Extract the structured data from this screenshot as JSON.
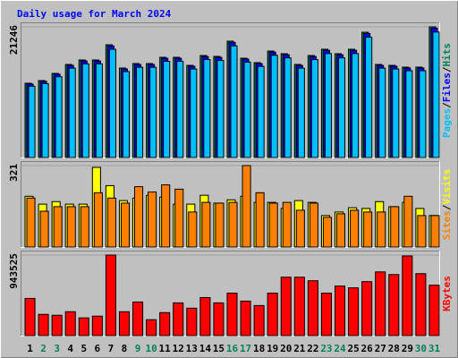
{
  "chart_data": [
    {
      "type": "bar",
      "title": "Daily usage for March 2024",
      "ylim": [
        0,
        21246
      ],
      "yticks": [
        21246
      ],
      "legend_separator": "/",
      "series": [
        {
          "name": "Hits",
          "color": "#00805c",
          "values": [
            12077,
            12513,
            13677,
            15132,
            15860,
            15860,
            18333,
            14550,
            15278,
            15278,
            16296,
            16296,
            14987,
            16587,
            16442,
            18915,
            16151,
            15423,
            17315,
            16878,
            15132,
            16587,
            17606,
            16878,
            17606,
            20370,
            15132,
            14987,
            14696,
            14696,
            21246
          ]
        },
        {
          "name": "Files",
          "color": "#0000ff",
          "values": [
            11950,
            12390,
            13540,
            14980,
            15700,
            15700,
            18150,
            14400,
            15120,
            15120,
            16130,
            16130,
            14840,
            16420,
            16280,
            18720,
            15990,
            15270,
            17140,
            16710,
            14980,
            16420,
            17430,
            16710,
            17430,
            20160,
            14980,
            14840,
            14550,
            14550,
            21030
          ]
        },
        {
          "name": "Pages",
          "color": "#00c0ff",
          "values": [
            11590,
            12010,
            13130,
            14530,
            15230,
            15230,
            17600,
            13970,
            14670,
            14670,
            15640,
            15640,
            14390,
            15920,
            15780,
            18160,
            15510,
            14810,
            16620,
            16200,
            14530,
            15920,
            16900,
            16200,
            16900,
            19560,
            14530,
            14390,
            14110,
            14110,
            20400
          ]
        }
      ]
    },
    {
      "type": "bar",
      "ylim": [
        0,
        321
      ],
      "yticks": [
        321
      ],
      "legend_separator": "/",
      "series": [
        {
          "name": "Visits",
          "color": "#ffff00",
          "values": [
            200,
            169,
            179,
            169,
            169,
            314,
            242,
            183,
            193,
            204,
            197,
            169,
            169,
            204,
            173,
            186,
            200,
            176,
            176,
            152,
            183,
            176,
            124,
            138,
            155,
            152,
            179,
            159,
            176,
            152,
            124
          ]
        },
        {
          "name": "Sites",
          "color": "#ff8000",
          "values": [
            193,
            141,
            159,
            159,
            159,
            214,
            193,
            173,
            238,
            217,
            245,
            228,
            138,
            176,
            173,
            176,
            321,
            214,
            173,
            176,
            145,
            173,
            117,
            131,
            145,
            138,
            138,
            159,
            200,
            124,
            124
          ]
        }
      ]
    },
    {
      "type": "bar",
      "ylim": [
        0,
        943525
      ],
      "yticks": [
        943525
      ],
      "categories": [
        "1",
        "2",
        "3",
        "4",
        "5",
        "6",
        "7",
        "8",
        "9",
        "10",
        "11",
        "12",
        "13",
        "14",
        "15",
        "16",
        "17",
        "18",
        "19",
        "20",
        "21",
        "22",
        "23",
        "24",
        "25",
        "26",
        "27",
        "28",
        "29",
        "30",
        "31"
      ],
      "category_colors": [
        "#000000",
        "#00805c",
        "#00805c",
        "#000000",
        "#000000",
        "#000000",
        "#000000",
        "#000000",
        "#00805c",
        "#00805c",
        "#000000",
        "#000000",
        "#000000",
        "#000000",
        "#000000",
        "#00805c",
        "#00805c",
        "#000000",
        "#000000",
        "#000000",
        "#000000",
        "#000000",
        "#00805c",
        "#00805c",
        "#000000",
        "#000000",
        "#000000",
        "#000000",
        "#000000",
        "#00805c",
        "#00805c"
      ],
      "series": [
        {
          "name": "KBytes",
          "color": "#ff0000",
          "values": [
            435456,
            248832,
            238464,
            279936,
            207360,
            228096,
            943525,
            279936,
            393984,
            186624,
            269568,
            383616,
            321408,
            445824,
            383616,
            497664,
            404352,
            352512,
            497664,
            684288,
            684288,
            642816,
            497664,
            580608,
            559872,
            632448,
            746496,
            715392,
            933120,
            725760,
            590976
          ]
        }
      ]
    }
  ]
}
